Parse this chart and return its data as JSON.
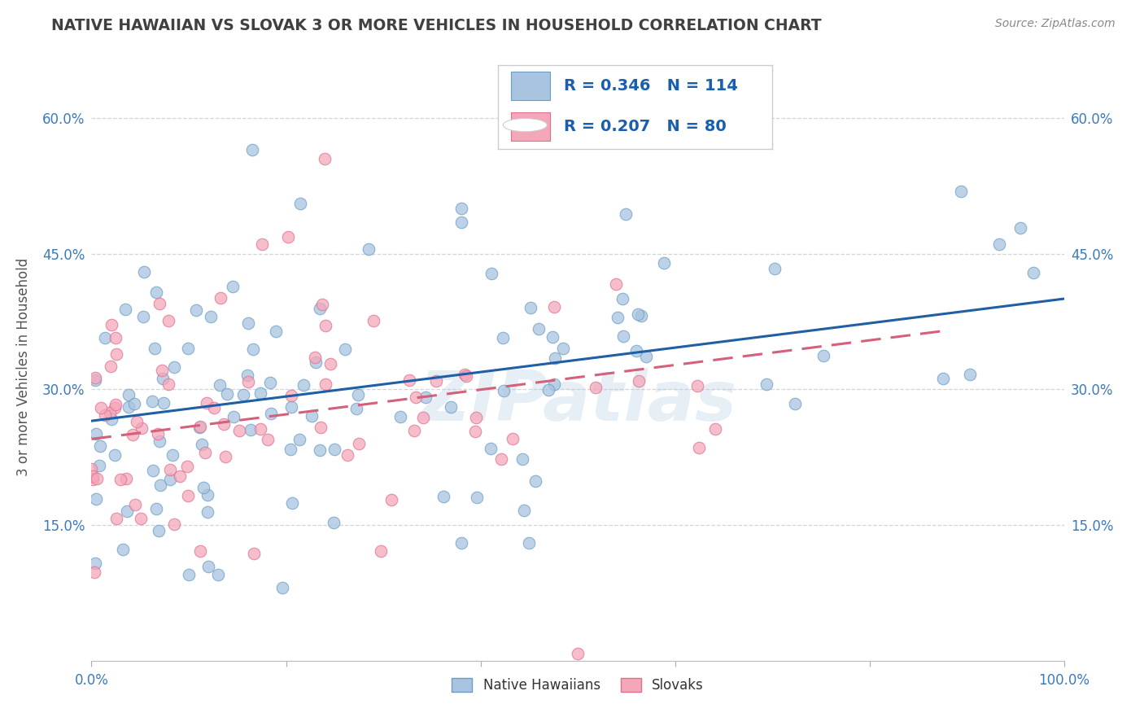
{
  "title": "NATIVE HAWAIIAN VS SLOVAK 3 OR MORE VEHICLES IN HOUSEHOLD CORRELATION CHART",
  "source": "Source: ZipAtlas.com",
  "ylabel": "3 or more Vehicles in Household",
  "watermark": "ZIPatlas",
  "blue_R": 0.346,
  "blue_N": 114,
  "pink_R": 0.207,
  "pink_N": 80,
  "xlim": [
    0.0,
    1.0
  ],
  "ylim": [
    0.0,
    0.65
  ],
  "xticks": [
    0.0,
    0.2,
    0.4,
    0.6,
    0.8,
    1.0
  ],
  "xticklabels": [
    "0.0%",
    "",
    "",
    "",
    "",
    "100.0%"
  ],
  "yticks": [
    0.0,
    0.15,
    0.3,
    0.45,
    0.6
  ],
  "yticklabels": [
    "",
    "15.0%",
    "30.0%",
    "45.0%",
    "60.0%"
  ],
  "blue_color": "#a8c4e0",
  "blue_edge_color": "#6a9ec5",
  "pink_color": "#f4a7b9",
  "pink_edge_color": "#e07090",
  "blue_line_color": "#1f5fa6",
  "pink_line_color": "#d4607a",
  "tick_label_color": "#3a7abf",
  "title_color": "#404040",
  "source_color": "#888888",
  "background_color": "#ffffff",
  "grid_color": "#d0d0d0",
  "legend_text_color": "#1a5fad",
  "blue_trendline_x0": 0.0,
  "blue_trendline_y0": 0.265,
  "blue_trendline_x1": 1.0,
  "blue_trendline_y1": 0.4,
  "pink_trendline_x0": 0.0,
  "pink_trendline_y0": 0.245,
  "pink_trendline_x1": 0.88,
  "pink_trendline_y1": 0.365
}
